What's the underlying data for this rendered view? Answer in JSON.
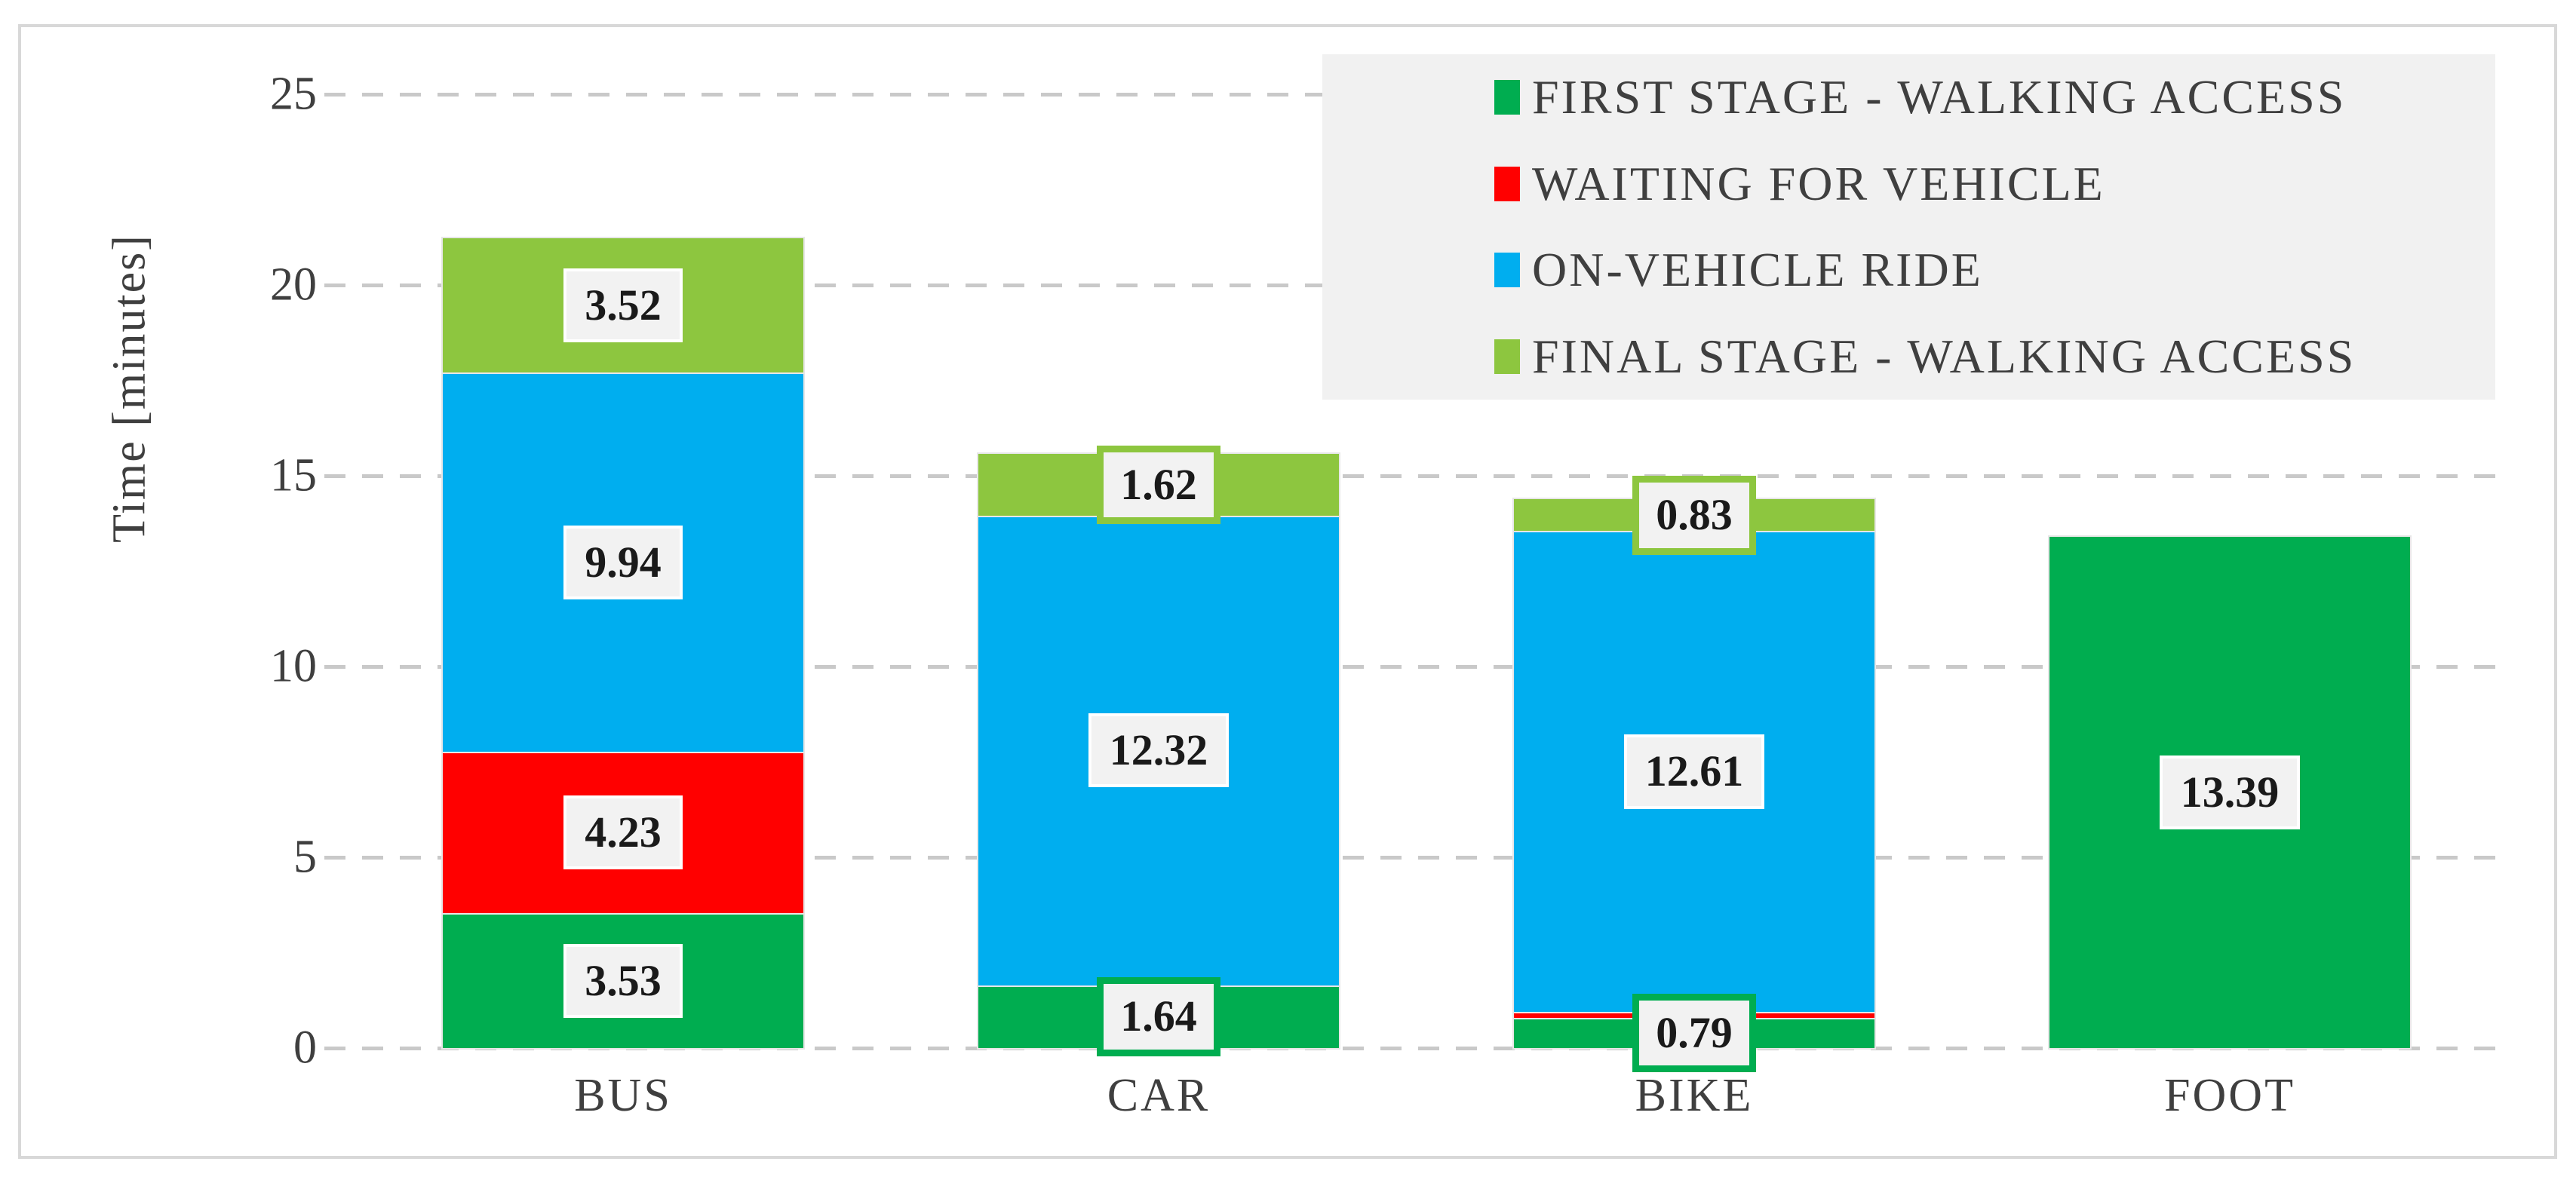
{
  "chart_data": {
    "type": "bar",
    "stacked": true,
    "ylabel": "Time [minutes]",
    "xlabel": "",
    "ylim": [
      0,
      25
    ],
    "yticks": [
      0,
      5,
      10,
      15,
      20,
      25
    ],
    "grid": "dashed-horizontal",
    "legend_position": "top-right",
    "categories": [
      "BUS",
      "CAR",
      "BIKE",
      "FOOT"
    ],
    "series": [
      {
        "name": "FIRST STAGE - WALKING ACCESS",
        "color": "#00AD50",
        "values": [
          3.53,
          1.64,
          0.79,
          13.39
        ],
        "data_labels": [
          "3.53",
          "1.64",
          "0.79",
          "13.39"
        ],
        "label_border_colors": [
          null,
          "#00AD50",
          "#00AD50",
          null
        ]
      },
      {
        "name": "WAITING FOR VEHICLE",
        "color": "#FF0000",
        "values": [
          4.23,
          0,
          0.15,
          0
        ],
        "data_labels": [
          "4.23",
          "",
          "",
          ""
        ],
        "label_border_colors": [
          null,
          null,
          null,
          null
        ]
      },
      {
        "name": "ON-VEHICLE RIDE",
        "color": "#00AEEF",
        "values": [
          9.94,
          12.32,
          12.61,
          0
        ],
        "data_labels": [
          "9.94",
          "12.32",
          "12.61",
          ""
        ],
        "label_border_colors": [
          null,
          null,
          null,
          null
        ]
      },
      {
        "name": "FINAL STAGE - WALKING ACCESS",
        "color": "#8DC63F",
        "values": [
          3.52,
          1.62,
          0.83,
          0
        ],
        "data_labels": [
          "3.52",
          "1.62",
          "0.83",
          ""
        ],
        "label_border_colors": [
          null,
          "#8DC63F",
          "#8DC63F",
          null
        ]
      }
    ],
    "category_totals": [
      21.22,
      15.58,
      14.38,
      13.39
    ]
  },
  "styles": {
    "grid_line": "#C9C9C9",
    "legend_bg": "#F1F1F1",
    "label_bg": "#F2F2F2",
    "label_text": "#1A1A1A",
    "axis_text": "#3F3F3F",
    "frame_border": "#D8D8D8",
    "segment_outline": "#E7E7E7",
    "plain_label_border": "#FFFFFF"
  }
}
